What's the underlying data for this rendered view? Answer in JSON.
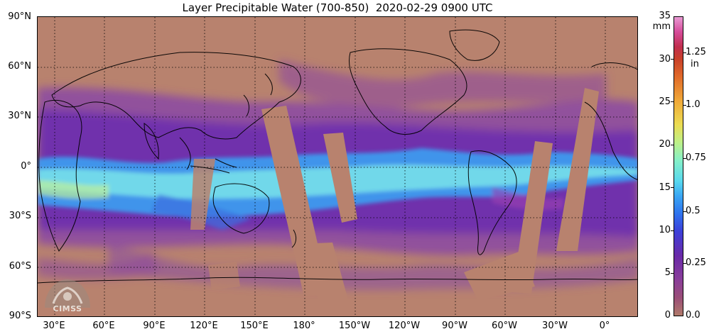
{
  "title": "Layer Precipitable Water (700-850)  2020-02-29 0900 UTC",
  "map": {
    "lat_labels": [
      "90°N",
      "60°N",
      "30°N",
      "0°",
      "30°S",
      "60°S",
      "90°S"
    ],
    "lon_labels": [
      "30°E",
      "60°E",
      "90°E",
      "120°E",
      "150°E",
      "180°",
      "150°W",
      "120°W",
      "90°W",
      "60°W",
      "30°W",
      "0°"
    ],
    "grid": "dashed"
  },
  "colorbar": {
    "mm_unit": "mm",
    "in_unit": "in",
    "mm_ticks": [
      "35",
      "30",
      "25",
      "20",
      "15",
      "10",
      "5",
      "0"
    ],
    "in_ticks": [
      "1.25",
      "1.0",
      "0.75",
      "0.5",
      "0.25",
      "0.0"
    ],
    "range_mm": [
      0,
      35
    ]
  },
  "logo": {
    "text": "CIMSS"
  },
  "colors": {
    "dry": "#b8826e",
    "moist_purple": "#7a3aa8",
    "wet_blue": "#3fa6f4",
    "very_wet": "#bdf09a"
  }
}
